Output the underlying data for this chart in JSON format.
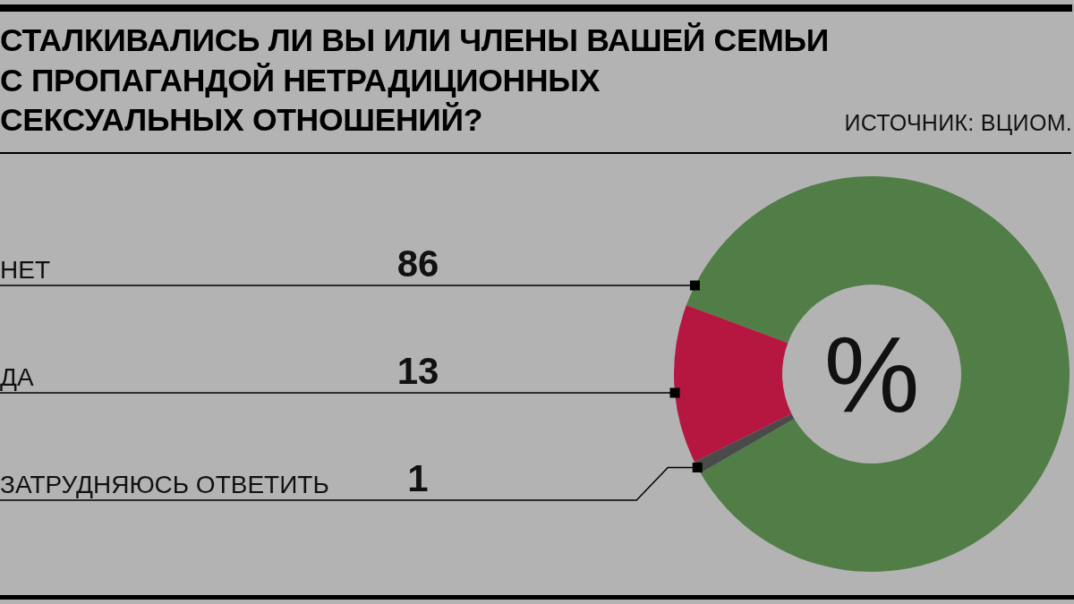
{
  "chart_data": {
    "type": "donut",
    "title": "СТАЛКИВАЛИСЬ ЛИ ВЫ ИЛИ ЧЛЕНЫ ВАШЕЙ СЕМЬИ\nС ПРОПАГАНДОЙ НЕТРАДИЦИОННЫХ\nСЕКСУАЛЬНЫХ ОТНОШЕНИЙ?",
    "categories": [
      "НЕТ",
      "ДА",
      "ЗАТРУДНЯЮСЬ ОТВЕТИТЬ"
    ],
    "values": [
      86,
      13,
      1
    ],
    "colors": [
      "#517d46",
      "#b51740",
      "#4a4a4a"
    ],
    "data_labels": true,
    "annotations": [
      "ИСТОЧНИК: ВЦИОМ.",
      "%"
    ]
  }
}
